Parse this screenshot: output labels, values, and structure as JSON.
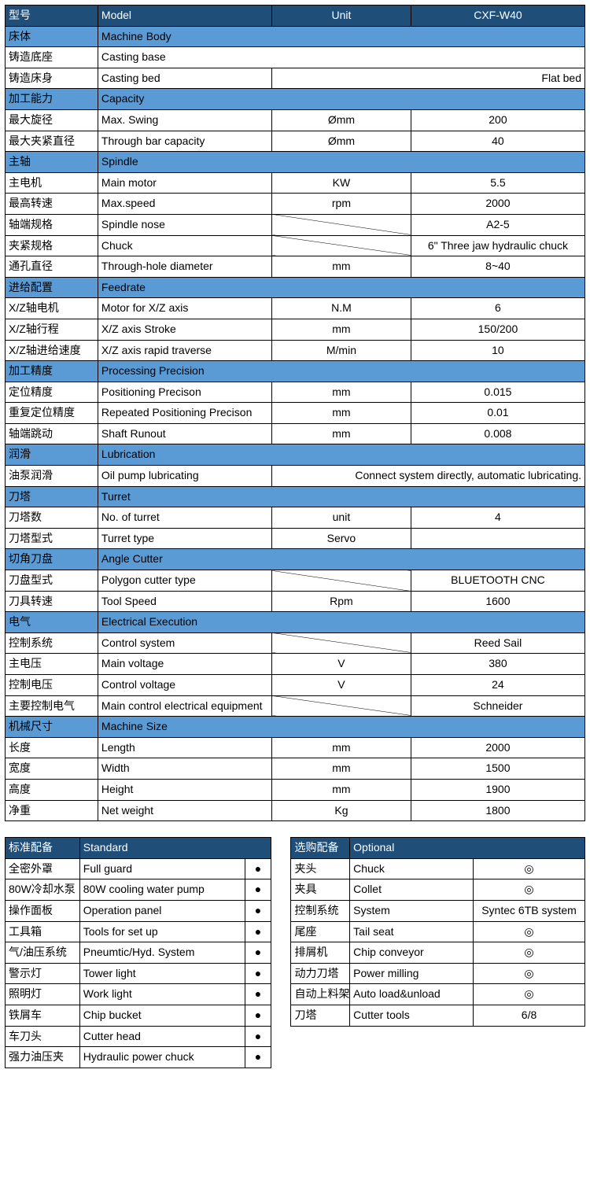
{
  "main": {
    "cols": [
      "型号",
      "Model",
      "Unit",
      "CXF-W40"
    ],
    "col_widths": [
      "16%",
      "30%",
      "24%",
      "30%"
    ],
    "sections": [
      {
        "zh": "床体",
        "en": "Machine Body",
        "rows": [
          {
            "zh": "铸造底座",
            "en": "Casting base",
            "span": true
          },
          {
            "zh": "铸造床身",
            "en": "Casting bed",
            "unit": "",
            "val": "Flat bed",
            "val_align": "r",
            "merge_uv": true
          }
        ]
      },
      {
        "zh": "加工能力",
        "en": "Capacity",
        "rows": [
          {
            "zh": "最大旋径",
            "en": "Max. Swing",
            "unit": "Ømm",
            "val": "200"
          },
          {
            "zh": "最大夹紧直径",
            "en": "Through bar capacity",
            "unit": "Ømm",
            "val": "40"
          }
        ]
      },
      {
        "zh": "主轴",
        "en": "Spindle",
        "rows": [
          {
            "zh": "主电机",
            "en": "Main motor",
            "unit": "KW",
            "val": "5.5"
          },
          {
            "zh": "最高转速",
            "en": "Max.speed",
            "unit": "rpm",
            "val": "2000"
          },
          {
            "zh": "轴端规格",
            "en": "Spindle nose",
            "unit": "diag",
            "val": "A2-5"
          },
          {
            "zh": "夹紧规格",
            "en": "Chuck",
            "unit": "diag",
            "val": "6\" Three jaw hydraulic chuck"
          },
          {
            "zh": "通孔直径",
            "en": "Through-hole diameter",
            "unit": "mm",
            "val": "8~40"
          }
        ]
      },
      {
        "zh": "进给配置",
        "en": "Feedrate",
        "rows": [
          {
            "zh": "X/Z轴电机",
            "en": "Motor for X/Z axis",
            "unit": "N.M",
            "val": "6"
          },
          {
            "zh": "X/Z轴行程",
            "en": "X/Z axis Stroke",
            "unit": "mm",
            "val": "150/200"
          },
          {
            "zh": "X/Z轴进给速度",
            "en": "X/Z axis rapid traverse",
            "unit": "M/min",
            "val": "10"
          }
        ]
      },
      {
        "zh": "加工精度",
        "en": "Processing Precision",
        "rows": [
          {
            "zh": "定位精度",
            "en": "Positioning Precison",
            "unit": "mm",
            "val": "0.015"
          },
          {
            "zh": "重复定位精度",
            "en": "Repeated Positioning Precison",
            "unit": "mm",
            "val": "0.01"
          },
          {
            "zh": "轴端跳动",
            "en": "Shaft Runout",
            "unit": "mm",
            "val": "0.008"
          }
        ]
      },
      {
        "zh": "润滑",
        "en": "Lubrication",
        "rows": [
          {
            "zh": "油泵润滑",
            "en": "Oil pump lubricating",
            "unit": "",
            "val": "Connect system directly, automatic lubricating.",
            "val_align": "r",
            "merge_uv": true
          }
        ]
      },
      {
        "zh": "刀塔",
        "en": "Turret",
        "rows": [
          {
            "zh": "刀塔数",
            "en": "No. of turret",
            "unit": "unit",
            "val": "4"
          },
          {
            "zh": "刀塔型式",
            "en": "Turret type",
            "unit": "Servo",
            "val": ""
          }
        ]
      },
      {
        "zh": "切角刀盘",
        "en": "Angle Cutter",
        "rows": [
          {
            "zh": "刀盘型式",
            "en": "Polygon cutter type",
            "unit": "diag",
            "val": "BLUETOOTH CNC"
          },
          {
            "zh": "刀具转速",
            "en": "Tool Speed",
            "unit": "Rpm",
            "val": "1600"
          }
        ]
      },
      {
        "zh": "电气",
        "en": "Electrical Execution",
        "rows": [
          {
            "zh": "控制系统",
            "en": "Control system",
            "unit": "diag",
            "val": "Reed Sail"
          },
          {
            "zh": "主电压",
            "en": "Main voltage",
            "unit": "V",
            "val": "380"
          },
          {
            "zh": "控制电压",
            "en": "Control voltage",
            "unit": "V",
            "val": "24"
          },
          {
            "zh": "主要控制电气",
            "en": "Main control electrical equipment",
            "unit": "diag",
            "val": "Schneider"
          }
        ]
      },
      {
        "zh": "机械尺寸",
        "en": "Machine Size",
        "rows": [
          {
            "zh": "长度",
            "en": "Length",
            "unit": "mm",
            "val": "2000"
          },
          {
            "zh": "宽度",
            "en": "Width",
            "unit": "mm",
            "val": "1500"
          },
          {
            "zh": "高度",
            "en": "Height",
            "unit": "mm",
            "val": "1900"
          },
          {
            "zh": "净重",
            "en": "Net weight",
            "unit": "Kg",
            "val": "1800"
          }
        ]
      }
    ]
  },
  "standard": {
    "head_zh": "标准配备",
    "head_en": "Standard",
    "col_widths": [
      "28%",
      "62%",
      "10%"
    ],
    "rows": [
      {
        "zh": "全密外罩",
        "en": "Full guard",
        "m": "●"
      },
      {
        "zh": "80W冷却水泵",
        "en": "80W cooling water pump",
        "m": "●"
      },
      {
        "zh": "操作面板",
        "en": "Operation panel",
        "m": "●"
      },
      {
        "zh": "工具箱",
        "en": "Tools for set up",
        "m": "●"
      },
      {
        "zh": "气/油压系统",
        "en": "Pneumtic/Hyd. System",
        "m": "●"
      },
      {
        "zh": "警示灯",
        "en": "Tower light",
        "m": "●"
      },
      {
        "zh": "照明灯",
        "en": "Work light",
        "m": "●"
      },
      {
        "zh": "铁屑车",
        "en": "Chip bucket",
        "m": "●"
      },
      {
        "zh": "车刀头",
        "en": "Cutter head",
        "m": "●"
      },
      {
        "zh": "强力油压夹",
        "en": "Hydraulic power chuck",
        "m": "●"
      }
    ]
  },
  "optional": {
    "head_zh": "选购配备",
    "head_en": "Optional",
    "col_widths": [
      "20%",
      "42%",
      "38%"
    ],
    "rows": [
      {
        "zh": "夹头",
        "en": "Chuck",
        "m": "◎"
      },
      {
        "zh": "夹具",
        "en": "Collet",
        "m": "◎"
      },
      {
        "zh": "控制系统",
        "en": "System",
        "m": "Syntec 6TB system"
      },
      {
        "zh": "尾座",
        "en": "Tail seat",
        "m": "◎"
      },
      {
        "zh": "排屑机",
        "en": "Chip conveyor",
        "m": "◎"
      },
      {
        "zh": "动力刀塔",
        "en": "Power milling",
        "m": "◎"
      },
      {
        "zh": "自动上料架",
        "en": "Auto load&unload",
        "m": "◎"
      },
      {
        "zh": "刀塔",
        "en": "Cutter tools",
        "m": "6/8"
      }
    ]
  }
}
